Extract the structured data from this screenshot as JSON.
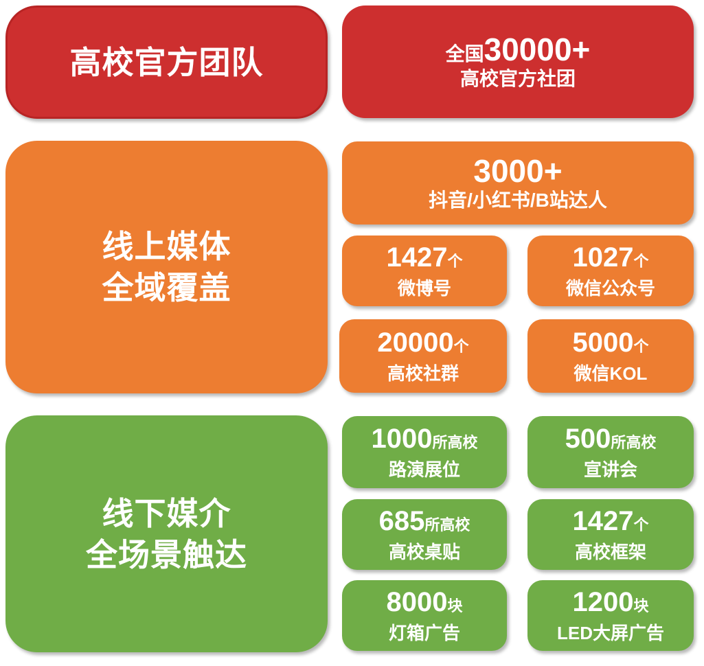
{
  "colors": {
    "red": "#CD2F2F",
    "orange": "#ED7D31",
    "green": "#70AD47"
  },
  "campus": {
    "title": "高校官方团队",
    "stat": {
      "prefix": "全国",
      "number": "30000+",
      "label": "高校官方社团"
    }
  },
  "online": {
    "title_line1": "线上媒体",
    "title_line2": "全域覆盖",
    "top": {
      "number": "3000+",
      "label": "抖音/小红书/B站达人"
    },
    "items": [
      {
        "number": "1427",
        "unit": "个",
        "label": "微博号"
      },
      {
        "number": "1027",
        "unit": "个",
        "label": "微信公众号"
      },
      {
        "number": "20000",
        "unit": "个",
        "label": "高校社群"
      },
      {
        "number": "5000",
        "unit": "个",
        "label": "微信KOL"
      }
    ]
  },
  "offline": {
    "title_line1": "线下媒介",
    "title_line2": "全场景触达",
    "items": [
      {
        "number": "1000",
        "unit": "所高校",
        "label": "路演展位"
      },
      {
        "number": "500",
        "unit": "所高校",
        "label": "宣讲会"
      },
      {
        "number": "685",
        "unit": "所高校",
        "label": "高校桌贴"
      },
      {
        "number": "1427",
        "unit": "个",
        "label": "高校框架"
      },
      {
        "number": "8000",
        "unit": "块",
        "label": "灯箱广告"
      },
      {
        "number": "1200",
        "unit": "块",
        "label": "LED大屏广告"
      }
    ]
  }
}
